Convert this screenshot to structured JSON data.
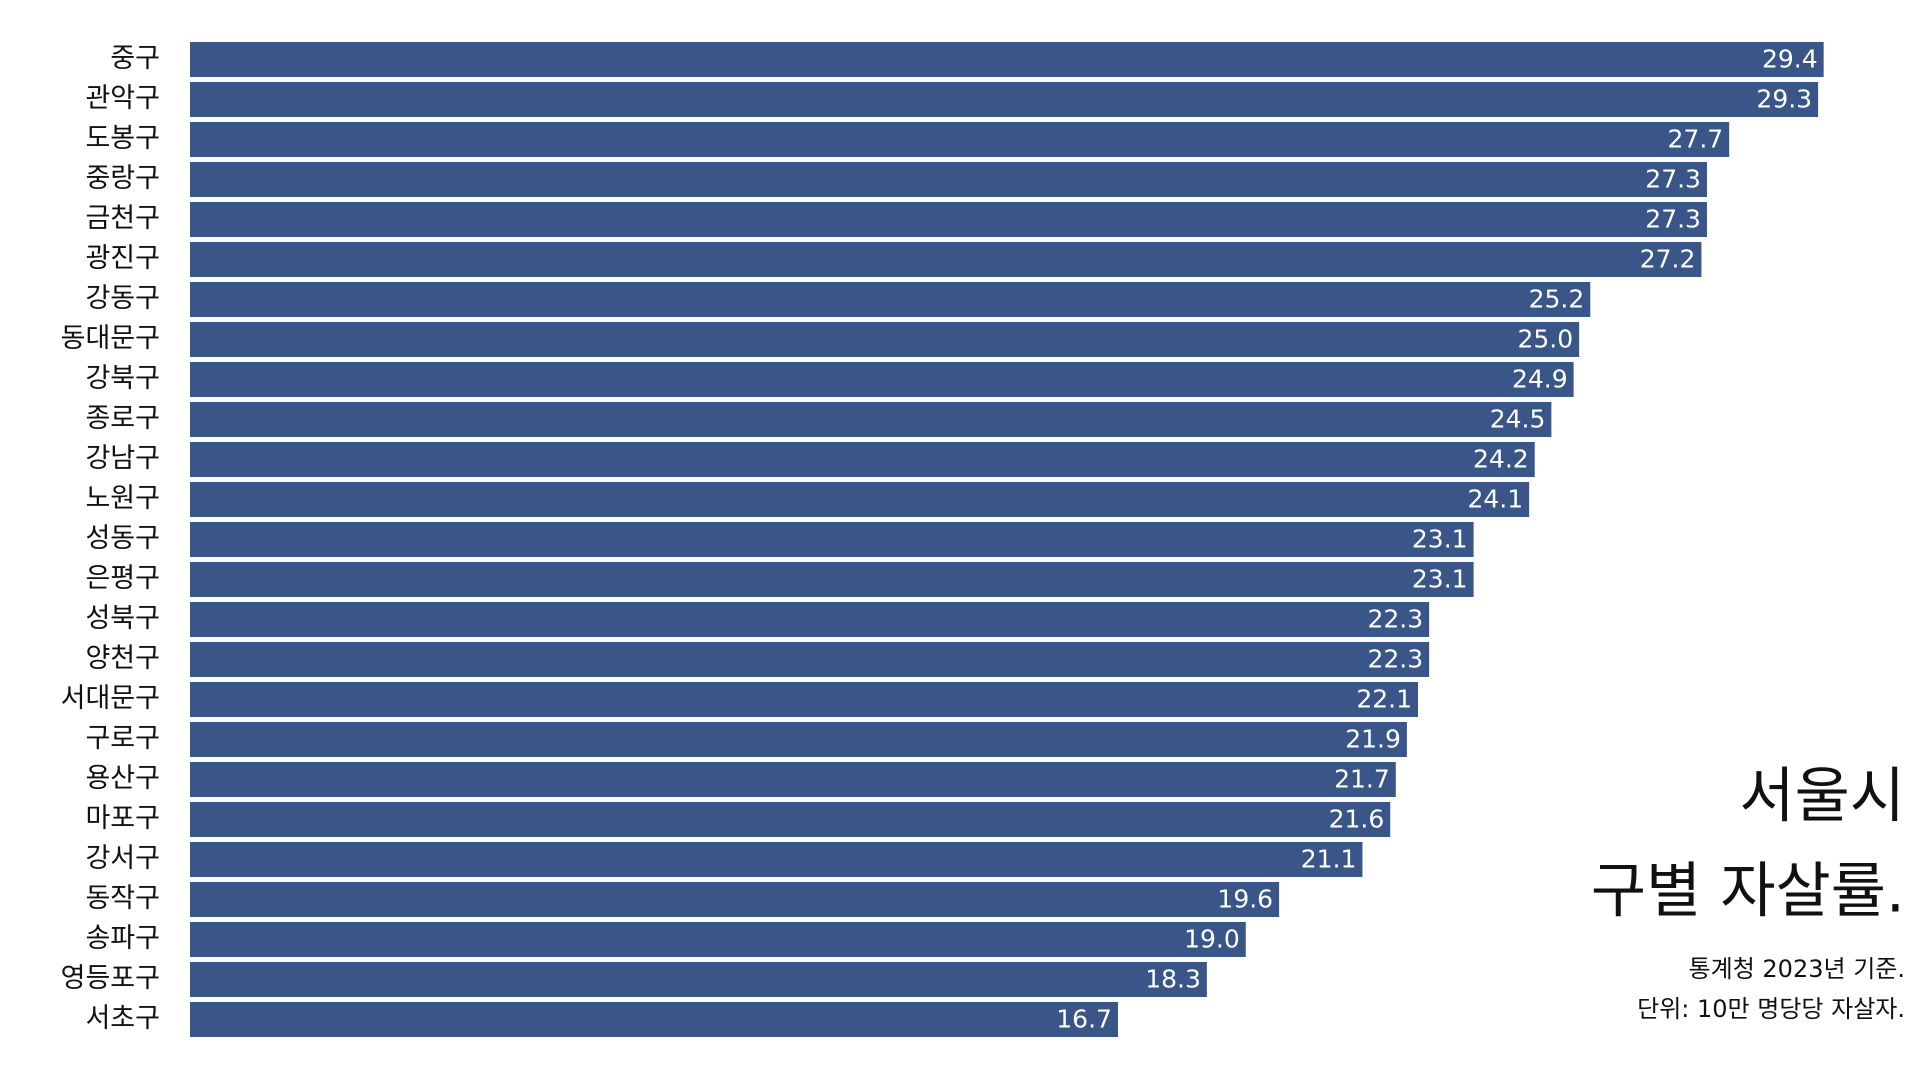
{
  "chart_data": {
    "type": "bar",
    "orientation": "horizontal",
    "title_lines": [
      "서울시",
      "구별 자살률."
    ],
    "notes": [
      "통계청 2023년 기준.",
      "단위: 10만 명당당 자살자."
    ],
    "categories": [
      "중구",
      "관악구",
      "도봉구",
      "중랑구",
      "금천구",
      "광진구",
      "강동구",
      "동대문구",
      "강북구",
      "종로구",
      "강남구",
      "노원구",
      "성동구",
      "은평구",
      "성북구",
      "양천구",
      "서대문구",
      "구로구",
      "용산구",
      "마포구",
      "강서구",
      "동작구",
      "송파구",
      "영등포구",
      "서초구"
    ],
    "values": [
      29.4,
      29.3,
      27.7,
      27.3,
      27.3,
      27.2,
      25.2,
      25,
      24.9,
      24.5,
      24.2,
      24.1,
      23.1,
      23.1,
      22.3,
      22.3,
      22.1,
      21.9,
      21.7,
      21.6,
      21.1,
      19.6,
      19,
      18.3,
      16.7
    ],
    "value_labels": [
      "29.4",
      "29.3",
      "27.7",
      "27.3",
      "27.3",
      "27.2",
      "25.2",
      "25.0",
      "24.9",
      "24.5",
      "24.2",
      "24.1",
      "23.1",
      "23.1",
      "22.3",
      "22.3",
      "22.1",
      "21.9",
      "21.7",
      "21.6",
      "21.1",
      "19.6",
      "19.0",
      "18.3",
      "16.7"
    ],
    "color": "#3a5688",
    "xlim": [
      0,
      30
    ]
  }
}
